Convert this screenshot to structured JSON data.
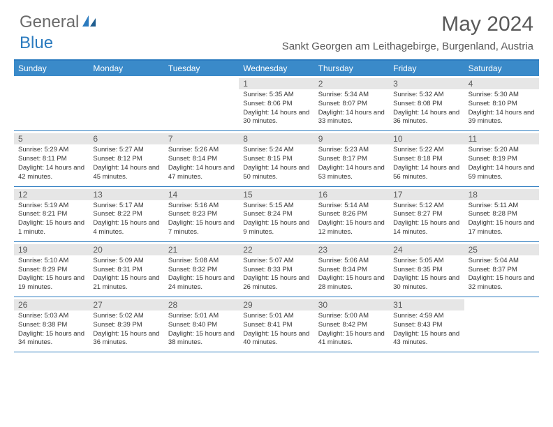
{
  "logo": {
    "part1": "General",
    "part2": "Blue"
  },
  "title": "May 2024",
  "location": "Sankt Georgen am Leithagebirge, Burgenland, Austria",
  "colors": {
    "header_bg": "#3a8ac9",
    "border": "#2b7bbf",
    "daynum_bg": "#e6e6e6",
    "text_gray": "#5a5a5a"
  },
  "day_headers": [
    "Sunday",
    "Monday",
    "Tuesday",
    "Wednesday",
    "Thursday",
    "Friday",
    "Saturday"
  ],
  "weeks": [
    [
      {
        "n": "",
        "sr": "",
        "ss": "",
        "dl": ""
      },
      {
        "n": "",
        "sr": "",
        "ss": "",
        "dl": ""
      },
      {
        "n": "",
        "sr": "",
        "ss": "",
        "dl": ""
      },
      {
        "n": "1",
        "sr": "Sunrise: 5:35 AM",
        "ss": "Sunset: 8:06 PM",
        "dl": "Daylight: 14 hours and 30 minutes."
      },
      {
        "n": "2",
        "sr": "Sunrise: 5:34 AM",
        "ss": "Sunset: 8:07 PM",
        "dl": "Daylight: 14 hours and 33 minutes."
      },
      {
        "n": "3",
        "sr": "Sunrise: 5:32 AM",
        "ss": "Sunset: 8:08 PM",
        "dl": "Daylight: 14 hours and 36 minutes."
      },
      {
        "n": "4",
        "sr": "Sunrise: 5:30 AM",
        "ss": "Sunset: 8:10 PM",
        "dl": "Daylight: 14 hours and 39 minutes."
      }
    ],
    [
      {
        "n": "5",
        "sr": "Sunrise: 5:29 AM",
        "ss": "Sunset: 8:11 PM",
        "dl": "Daylight: 14 hours and 42 minutes."
      },
      {
        "n": "6",
        "sr": "Sunrise: 5:27 AM",
        "ss": "Sunset: 8:12 PM",
        "dl": "Daylight: 14 hours and 45 minutes."
      },
      {
        "n": "7",
        "sr": "Sunrise: 5:26 AM",
        "ss": "Sunset: 8:14 PM",
        "dl": "Daylight: 14 hours and 47 minutes."
      },
      {
        "n": "8",
        "sr": "Sunrise: 5:24 AM",
        "ss": "Sunset: 8:15 PM",
        "dl": "Daylight: 14 hours and 50 minutes."
      },
      {
        "n": "9",
        "sr": "Sunrise: 5:23 AM",
        "ss": "Sunset: 8:17 PM",
        "dl": "Daylight: 14 hours and 53 minutes."
      },
      {
        "n": "10",
        "sr": "Sunrise: 5:22 AM",
        "ss": "Sunset: 8:18 PM",
        "dl": "Daylight: 14 hours and 56 minutes."
      },
      {
        "n": "11",
        "sr": "Sunrise: 5:20 AM",
        "ss": "Sunset: 8:19 PM",
        "dl": "Daylight: 14 hours and 59 minutes."
      }
    ],
    [
      {
        "n": "12",
        "sr": "Sunrise: 5:19 AM",
        "ss": "Sunset: 8:21 PM",
        "dl": "Daylight: 15 hours and 1 minute."
      },
      {
        "n": "13",
        "sr": "Sunrise: 5:17 AM",
        "ss": "Sunset: 8:22 PM",
        "dl": "Daylight: 15 hours and 4 minutes."
      },
      {
        "n": "14",
        "sr": "Sunrise: 5:16 AM",
        "ss": "Sunset: 8:23 PM",
        "dl": "Daylight: 15 hours and 7 minutes."
      },
      {
        "n": "15",
        "sr": "Sunrise: 5:15 AM",
        "ss": "Sunset: 8:24 PM",
        "dl": "Daylight: 15 hours and 9 minutes."
      },
      {
        "n": "16",
        "sr": "Sunrise: 5:14 AM",
        "ss": "Sunset: 8:26 PM",
        "dl": "Daylight: 15 hours and 12 minutes."
      },
      {
        "n": "17",
        "sr": "Sunrise: 5:12 AM",
        "ss": "Sunset: 8:27 PM",
        "dl": "Daylight: 15 hours and 14 minutes."
      },
      {
        "n": "18",
        "sr": "Sunrise: 5:11 AM",
        "ss": "Sunset: 8:28 PM",
        "dl": "Daylight: 15 hours and 17 minutes."
      }
    ],
    [
      {
        "n": "19",
        "sr": "Sunrise: 5:10 AM",
        "ss": "Sunset: 8:29 PM",
        "dl": "Daylight: 15 hours and 19 minutes."
      },
      {
        "n": "20",
        "sr": "Sunrise: 5:09 AM",
        "ss": "Sunset: 8:31 PM",
        "dl": "Daylight: 15 hours and 21 minutes."
      },
      {
        "n": "21",
        "sr": "Sunrise: 5:08 AM",
        "ss": "Sunset: 8:32 PM",
        "dl": "Daylight: 15 hours and 24 minutes."
      },
      {
        "n": "22",
        "sr": "Sunrise: 5:07 AM",
        "ss": "Sunset: 8:33 PM",
        "dl": "Daylight: 15 hours and 26 minutes."
      },
      {
        "n": "23",
        "sr": "Sunrise: 5:06 AM",
        "ss": "Sunset: 8:34 PM",
        "dl": "Daylight: 15 hours and 28 minutes."
      },
      {
        "n": "24",
        "sr": "Sunrise: 5:05 AM",
        "ss": "Sunset: 8:35 PM",
        "dl": "Daylight: 15 hours and 30 minutes."
      },
      {
        "n": "25",
        "sr": "Sunrise: 5:04 AM",
        "ss": "Sunset: 8:37 PM",
        "dl": "Daylight: 15 hours and 32 minutes."
      }
    ],
    [
      {
        "n": "26",
        "sr": "Sunrise: 5:03 AM",
        "ss": "Sunset: 8:38 PM",
        "dl": "Daylight: 15 hours and 34 minutes."
      },
      {
        "n": "27",
        "sr": "Sunrise: 5:02 AM",
        "ss": "Sunset: 8:39 PM",
        "dl": "Daylight: 15 hours and 36 minutes."
      },
      {
        "n": "28",
        "sr": "Sunrise: 5:01 AM",
        "ss": "Sunset: 8:40 PM",
        "dl": "Daylight: 15 hours and 38 minutes."
      },
      {
        "n": "29",
        "sr": "Sunrise: 5:01 AM",
        "ss": "Sunset: 8:41 PM",
        "dl": "Daylight: 15 hours and 40 minutes."
      },
      {
        "n": "30",
        "sr": "Sunrise: 5:00 AM",
        "ss": "Sunset: 8:42 PM",
        "dl": "Daylight: 15 hours and 41 minutes."
      },
      {
        "n": "31",
        "sr": "Sunrise: 4:59 AM",
        "ss": "Sunset: 8:43 PM",
        "dl": "Daylight: 15 hours and 43 minutes."
      },
      {
        "n": "",
        "sr": "",
        "ss": "",
        "dl": ""
      }
    ]
  ]
}
